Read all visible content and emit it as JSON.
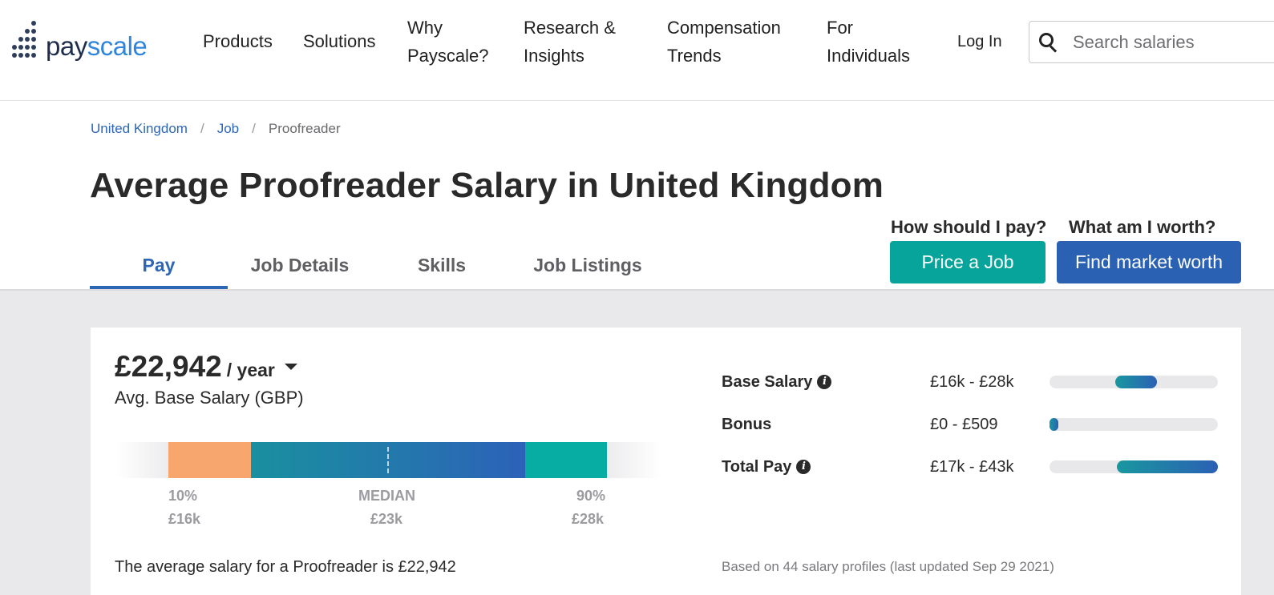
{
  "logo": {
    "part1": "pay",
    "part2": "scale"
  },
  "nav": {
    "products": "Products",
    "solutions": "Solutions",
    "why_line1": "Why",
    "why_line2": "Payscale?",
    "research_line1": "Research &",
    "research_line2": "Insights",
    "comp_line1": "Compensation",
    "comp_line2": "Trends",
    "individuals_line1": "For",
    "individuals_line2": "Individuals",
    "login": "Log In"
  },
  "search": {
    "placeholder": "Search salaries",
    "value": ""
  },
  "breadcrumb": {
    "country": "United Kingdom",
    "job": "Job",
    "current": "Proofreader",
    "sep": "/"
  },
  "page_title": "Average Proofreader Salary in United Kingdom",
  "tabs": {
    "pay": "Pay",
    "job_details": "Job Details",
    "skills": "Skills",
    "job_listings": "Job Listings"
  },
  "cta": {
    "pay_question": "How should I pay?",
    "worth_question": "What am I worth?",
    "price_job": "Price a Job",
    "market_worth": "Find market worth"
  },
  "salary": {
    "amount": "£22,942",
    "period": "/ year",
    "subtitle": "Avg. Base Salary (GBP)",
    "p10_label": "10%",
    "p10_value": "£16k",
    "median_label": "MEDIAN",
    "median_value": "£23k",
    "p90_label": "90%",
    "p90_value": "£28k",
    "summary": "The average salary for a Proofreader is £22,942"
  },
  "components": {
    "base": {
      "label": "Base Salary",
      "range": "£16k - £28k",
      "fill_start": 0.39,
      "fill_end": 0.64
    },
    "bonus": {
      "label": "Bonus",
      "range": "£0 - £509",
      "fill_start": 0.0,
      "fill_end": 0.05
    },
    "total": {
      "label": "Total Pay",
      "range": "£17k - £43k",
      "fill_start": 0.4,
      "fill_end": 1.0
    }
  },
  "based_on": "Based on 44 salary profiles (last updated Sep 29 2021)",
  "colors": {
    "link_blue": "#2d66b5",
    "teal_button": "#06a49a",
    "blue_button": "#2a61b2",
    "p10_orange": "#f7a66e",
    "p90_teal": "#07aca3"
  }
}
